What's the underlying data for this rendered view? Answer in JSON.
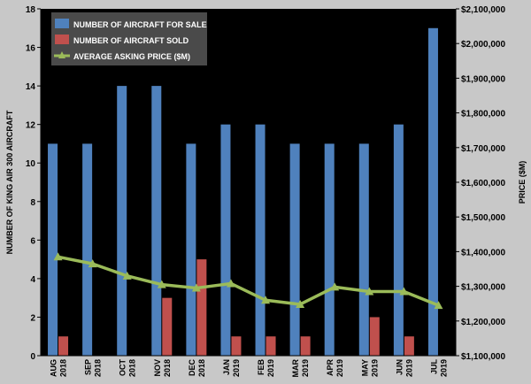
{
  "chart_data": {
    "type": "bar",
    "categories": [
      [
        "AUG",
        "2018"
      ],
      [
        "SEP",
        "2018"
      ],
      [
        "OCT",
        "2018"
      ],
      [
        "NOV",
        "2018"
      ],
      [
        "DEC",
        "2018"
      ],
      [
        "JAN",
        "2019"
      ],
      [
        "FEB",
        "2019"
      ],
      [
        "MAR",
        "2019"
      ],
      [
        "APR",
        "2019"
      ],
      [
        "MAY",
        "2019"
      ],
      [
        "JUN",
        "2019"
      ],
      [
        "JUL",
        "2019"
      ]
    ],
    "ylabel": "NUMBER OF KING AIR 300 AIRCRAFT",
    "y2label": "PRICE ($M)",
    "ylim": [
      0,
      18
    ],
    "yticks": [
      "0",
      "2",
      "4",
      "6",
      "8",
      "10",
      "12",
      "14",
      "16",
      "18"
    ],
    "y2lim": [
      1100000,
      2100000
    ],
    "y2ticks": [
      "$1,100,000",
      "$1,200,000",
      "$1,300,000",
      "$1,400,000",
      "$1,500,000",
      "$1,600,000",
      "$1,700,000",
      "$1,800,000",
      "$1,900,000",
      "$2,000,000",
      "$2,100,000"
    ],
    "grid": false,
    "legend_position": "top-left",
    "series": [
      {
        "name": "NUMBER OF AIRCRAFT FOR SALE",
        "kind": "bar",
        "axis": "left",
        "color": "#4f81bd",
        "values": [
          11,
          11,
          14,
          14,
          11,
          12,
          12,
          11,
          11,
          11,
          12,
          17
        ]
      },
      {
        "name": "NUMBER OF AIRCRAFT SOLD",
        "kind": "bar",
        "axis": "left",
        "color": "#c0504d",
        "values": [
          1,
          0,
          0,
          3,
          5,
          1,
          1,
          1,
          0,
          2,
          1,
          0
        ]
      },
      {
        "name": "AVERAGE ASKING PRICE ($M)",
        "kind": "line",
        "axis": "right",
        "color": "#9bbb59",
        "values": [
          1385000,
          1365000,
          1330000,
          1305000,
          1295000,
          1308000,
          1260000,
          1248000,
          1298000,
          1285000,
          1285000,
          1245000
        ]
      }
    ],
    "colors": {
      "plot_background": "#000000",
      "page_background": "#c8c8c8"
    }
  }
}
